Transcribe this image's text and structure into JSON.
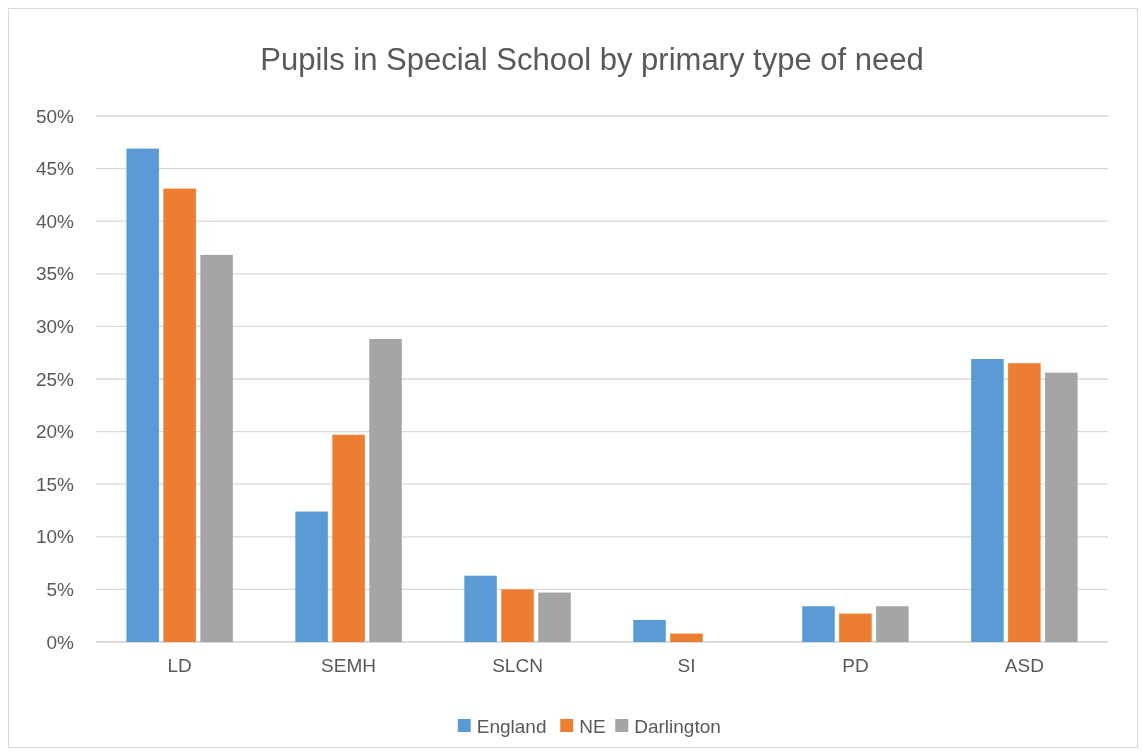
{
  "chart_data": {
    "type": "bar",
    "title": "Pupils in Special School by primary type of need",
    "categories": [
      "LD",
      "SEMH",
      "SLCN",
      "SI",
      "PD",
      "ASD"
    ],
    "series": [
      {
        "name": "England",
        "color": "#5b9bd5",
        "values": [
          46.9,
          12.4,
          6.3,
          2.1,
          3.4,
          26.9
        ]
      },
      {
        "name": "NE",
        "color": "#ed7d31",
        "values": [
          43.1,
          19.7,
          5.0,
          0.8,
          2.7,
          26.5
        ]
      },
      {
        "name": "Darlington",
        "color": "#a5a5a5",
        "values": [
          36.8,
          28.8,
          4.7,
          0,
          3.4,
          25.6
        ]
      }
    ],
    "ylim": [
      0,
      50
    ],
    "yticks": [
      {
        "value": 0,
        "label": "0%"
      },
      {
        "value": 5,
        "label": "5%"
      },
      {
        "value": 10,
        "label": "10%"
      },
      {
        "value": 15,
        "label": "15%"
      },
      {
        "value": 20,
        "label": "20%"
      },
      {
        "value": 25,
        "label": "25%"
      },
      {
        "value": 30,
        "label": "30%"
      },
      {
        "value": 35,
        "label": "35%"
      },
      {
        "value": 40,
        "label": "40%"
      },
      {
        "value": 45,
        "label": "45%"
      },
      {
        "value": 50,
        "label": "50%"
      }
    ],
    "grid": "y",
    "legend": "bottom"
  }
}
